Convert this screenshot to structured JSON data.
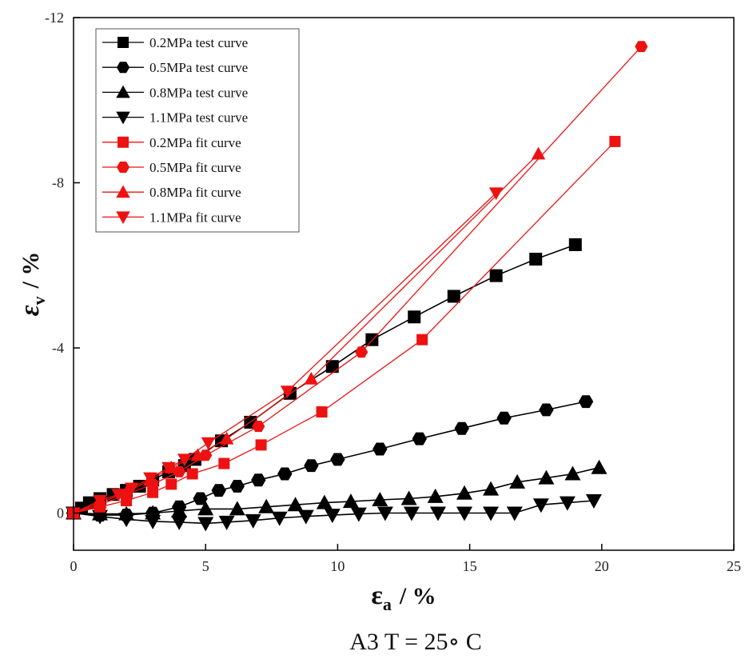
{
  "chart_data": {
    "type": "scatter",
    "caption": "A3 T = 25∘  C",
    "xlabel": {
      "main": "ε",
      "sub": "a",
      "unit": "/ %"
    },
    "ylabel": {
      "main": "ε",
      "sub": "v",
      "unit": "/ %"
    },
    "xlim": [
      0,
      25
    ],
    "ylim": [
      0.9,
      -12
    ],
    "xticks": [
      0,
      5,
      10,
      15,
      20,
      25
    ],
    "yticks": [
      0,
      -4,
      -8,
      -12
    ],
    "legend_position": "top-left",
    "series": [
      {
        "name": "0.2MPa test curve",
        "color": "#000000",
        "marker": "square",
        "fit": false,
        "x": [
          0,
          0.3,
          0.6,
          1.0,
          1.5,
          2.0,
          2.5,
          3.0,
          3.6,
          4.2,
          4.6,
          5.6,
          6.7,
          8.2,
          9.8,
          11.3,
          12.9,
          14.4,
          16.0,
          17.5,
          19.0
        ],
        "y": [
          0,
          -0.12,
          -0.25,
          -0.35,
          -0.45,
          -0.55,
          -0.65,
          -0.8,
          -1.0,
          -1.15,
          -1.3,
          -1.75,
          -2.2,
          -2.9,
          -3.55,
          -4.2,
          -4.75,
          -5.25,
          -5.75,
          -6.15,
          -6.5
        ]
      },
      {
        "name": "0.5MPa test curve",
        "color": "#000000",
        "marker": "hexagon",
        "fit": false,
        "x": [
          0,
          1.0,
          2.0,
          3.0,
          4.0,
          4.8,
          5.5,
          6.2,
          7.0,
          8.0,
          9.0,
          10.0,
          11.6,
          13.1,
          14.7,
          16.3,
          17.9,
          19.4
        ],
        "y": [
          0,
          0.05,
          0.05,
          0.0,
          -0.15,
          -0.35,
          -0.55,
          -0.65,
          -0.8,
          -0.95,
          -1.15,
          -1.3,
          -1.55,
          -1.8,
          -2.05,
          -2.3,
          -2.5,
          -2.7
        ]
      },
      {
        "name": "0.8MPa test curve",
        "color": "#000000",
        "marker": "triangle-up",
        "fit": false,
        "x": [
          0,
          1.0,
          2.0,
          3.0,
          4.0,
          5.0,
          6.2,
          7.3,
          8.4,
          9.5,
          10.5,
          11.6,
          12.7,
          13.7,
          14.8,
          15.8,
          16.8,
          17.9,
          18.9,
          19.9
        ],
        "y": [
          0,
          0.02,
          0.02,
          0.0,
          -0.05,
          -0.1,
          -0.1,
          -0.15,
          -0.2,
          -0.25,
          -0.28,
          -0.32,
          -0.35,
          -0.4,
          -0.48,
          -0.58,
          -0.75,
          -0.85,
          -0.95,
          -1.1
        ]
      },
      {
        "name": "1.1MPa test curve",
        "color": "#000000",
        "marker": "triangle-down",
        "fit": false,
        "x": [
          0,
          1.0,
          2.0,
          3.0,
          4.0,
          5.0,
          5.8,
          6.8,
          7.8,
          8.8,
          9.8,
          10.8,
          11.8,
          12.8,
          13.8,
          14.8,
          15.8,
          16.7,
          17.7,
          18.7,
          19.7
        ],
        "y": [
          0,
          0.08,
          0.15,
          0.2,
          0.22,
          0.25,
          0.22,
          0.18,
          0.12,
          0.08,
          0.05,
          0.02,
          0.0,
          0.0,
          0.0,
          0.0,
          0.0,
          0.0,
          -0.2,
          -0.25,
          -0.3
        ]
      },
      {
        "name": "0.2MPa fit curve",
        "color": "#ee1111",
        "marker": "square",
        "fit": true,
        "x": [
          0,
          1.0,
          2.0,
          3.0,
          3.7,
          4.5,
          5.7,
          7.1,
          9.4,
          13.2,
          20.5
        ],
        "y": [
          0,
          -0.15,
          -0.3,
          -0.5,
          -0.7,
          -0.95,
          -1.2,
          -1.65,
          -2.45,
          -4.2,
          -9.0
        ]
      },
      {
        "name": "0.5MPa fit curve",
        "color": "#ee1111",
        "marker": "hexagon",
        "fit": true,
        "x": [
          0,
          1.0,
          2.0,
          3.0,
          4.0,
          5.0,
          7.0,
          10.9,
          21.5
        ],
        "y": [
          0,
          -0.2,
          -0.45,
          -0.7,
          -1.0,
          -1.4,
          -2.1,
          -3.9,
          -11.3
        ]
      },
      {
        "name": "0.8MPa fit curve",
        "color": "#ee1111",
        "marker": "triangle-up",
        "fit": true,
        "x": [
          0,
          1.0,
          2.0,
          2.9,
          3.7,
          4.7,
          5.8,
          9.0,
          17.6
        ],
        "y": [
          0,
          -0.25,
          -0.5,
          -0.8,
          -1.1,
          -1.4,
          -1.8,
          -3.25,
          -8.7
        ]
      },
      {
        "name": "1.1MPa fit curve",
        "color": "#ee1111",
        "marker": "triangle-down",
        "fit": true,
        "x": [
          0,
          1.0,
          1.7,
          2.2,
          2.9,
          3.6,
          4.2,
          5.1,
          8.1,
          16.0
        ],
        "y": [
          0,
          -0.3,
          -0.45,
          -0.6,
          -0.85,
          -1.1,
          -1.3,
          -1.7,
          -2.95,
          -7.75
        ]
      }
    ]
  }
}
